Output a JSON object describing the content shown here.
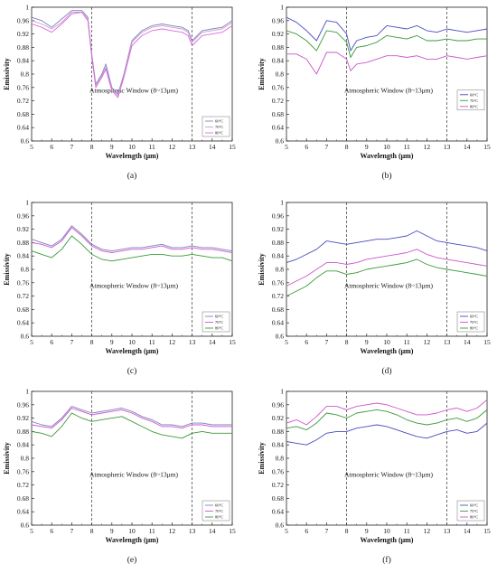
{
  "figure": {
    "panels": [
      {
        "caption": "(a)",
        "window_label": "Atmospheric Window (8~13μm)",
        "chart_data": {
          "type": "line",
          "xlabel": "Wavelength (μm)",
          "ylabel": "Emissivity",
          "xlim": [
            5,
            15
          ],
          "ylim": [
            0.6,
            1.0
          ],
          "x_ticks": [
            5,
            6,
            7,
            8,
            9,
            10,
            11,
            12,
            13,
            14,
            15
          ],
          "y_ticks": [
            0.6,
            0.64,
            0.68,
            0.72,
            0.76,
            0.8,
            0.84,
            0.88,
            0.92,
            0.96,
            1
          ],
          "vlines": [
            8,
            13
          ],
          "grid": false,
          "legend_position": "bottom-right",
          "x": [
            5,
            5.5,
            6,
            6.5,
            7,
            7.5,
            7.8,
            8,
            8.2,
            8.5,
            8.7,
            9,
            9.3,
            9.6,
            10,
            10.5,
            11,
            11.5,
            12,
            12.5,
            12.8,
            13,
            13.5,
            14,
            14.5,
            15
          ],
          "series": [
            {
              "name": "60°C",
              "color": "#7f7fbf",
              "values": [
                0.97,
                0.96,
                0.94,
                0.965,
                0.99,
                0.99,
                0.97,
                0.86,
                0.77,
                0.8,
                0.83,
                0.76,
                0.74,
                0.8,
                0.9,
                0.93,
                0.945,
                0.95,
                0.945,
                0.94,
                0.93,
                0.9,
                0.93,
                0.935,
                0.94,
                0.96
              ]
            },
            {
              "name": "70°C",
              "color": "#c2a4c2",
              "values": [
                0.96,
                0.95,
                0.935,
                0.955,
                0.985,
                0.985,
                0.965,
                0.855,
                0.765,
                0.795,
                0.82,
                0.755,
                0.735,
                0.795,
                0.895,
                0.925,
                0.94,
                0.945,
                0.94,
                0.935,
                0.925,
                0.895,
                0.925,
                0.93,
                0.935,
                0.955
              ]
            },
            {
              "name": "80°C",
              "color": "#e066e0",
              "values": [
                0.95,
                0.94,
                0.925,
                0.95,
                0.98,
                0.985,
                0.96,
                0.85,
                0.76,
                0.79,
                0.815,
                0.75,
                0.73,
                0.79,
                0.885,
                0.915,
                0.93,
                0.935,
                0.93,
                0.925,
                0.915,
                0.885,
                0.915,
                0.92,
                0.925,
                0.945
              ]
            }
          ]
        }
      },
      {
        "caption": "(b)",
        "window_label": "Atmospheric Window (8~13μm)",
        "chart_data": {
          "type": "line",
          "xlabel": "Wavelength (μm)",
          "ylabel": "Emissivity",
          "xlim": [
            5,
            15
          ],
          "ylim": [
            0.6,
            1.0
          ],
          "x_ticks": [
            5,
            6,
            7,
            8,
            9,
            10,
            11,
            12,
            13,
            14,
            15
          ],
          "y_ticks": [
            0.6,
            0.64,
            0.68,
            0.72,
            0.76,
            0.8,
            0.84,
            0.88,
            0.92,
            0.96,
            1
          ],
          "vlines": [
            8,
            13
          ],
          "grid": false,
          "legend_position": "right",
          "x": [
            5,
            5.5,
            6,
            6.5,
            7,
            7.5,
            8,
            8.2,
            8.5,
            9,
            9.5,
            10,
            10.5,
            11,
            11.5,
            12,
            12.5,
            13,
            13.5,
            14,
            14.5,
            15
          ],
          "series": [
            {
              "name": "60°C",
              "color": "#4b4bbf",
              "values": [
                0.97,
                0.955,
                0.93,
                0.9,
                0.96,
                0.955,
                0.92,
                0.87,
                0.9,
                0.91,
                0.915,
                0.945,
                0.94,
                0.935,
                0.945,
                0.93,
                0.925,
                0.935,
                0.93,
                0.925,
                0.93,
                0.935
              ]
            },
            {
              "name": "70°C",
              "color": "#3a9a3a",
              "values": [
                0.93,
                0.92,
                0.9,
                0.87,
                0.93,
                0.925,
                0.895,
                0.85,
                0.88,
                0.885,
                0.895,
                0.915,
                0.91,
                0.905,
                0.915,
                0.9,
                0.9,
                0.905,
                0.9,
                0.9,
                0.905,
                0.905
              ]
            },
            {
              "name": "80°C",
              "color": "#cc55cc",
              "values": [
                0.86,
                0.86,
                0.845,
                0.8,
                0.865,
                0.865,
                0.845,
                0.81,
                0.83,
                0.835,
                0.845,
                0.855,
                0.855,
                0.85,
                0.855,
                0.845,
                0.845,
                0.855,
                0.85,
                0.845,
                0.85,
                0.855
              ]
            }
          ]
        }
      },
      {
        "caption": "(c)",
        "window_label": "Atmospheric Window (8~13μm)",
        "chart_data": {
          "type": "line",
          "xlabel": "Wavelength (μm)",
          "ylabel": "Emissivity",
          "xlim": [
            5,
            15
          ],
          "ylim": [
            0.6,
            1.0
          ],
          "x_ticks": [
            5,
            6,
            7,
            8,
            9,
            10,
            11,
            12,
            13,
            14,
            15
          ],
          "y_ticks": [
            0.6,
            0.64,
            0.68,
            0.72,
            0.76,
            0.8,
            0.84,
            0.88,
            0.92,
            0.96,
            1
          ],
          "vlines": [
            8,
            13
          ],
          "grid": false,
          "legend_position": "bottom-right",
          "x": [
            5,
            5.5,
            6,
            6.5,
            7,
            7.5,
            8,
            8.5,
            9,
            9.5,
            10,
            10.5,
            11,
            11.5,
            12,
            12.5,
            13,
            13.5,
            14,
            14.5,
            15
          ],
          "series": [
            {
              "name": "60°C",
              "color": "#7f7fbf",
              "values": [
                0.89,
                0.88,
                0.87,
                0.89,
                0.93,
                0.905,
                0.875,
                0.86,
                0.855,
                0.86,
                0.865,
                0.865,
                0.87,
                0.875,
                0.865,
                0.865,
                0.87,
                0.865,
                0.865,
                0.86,
                0.855
              ]
            },
            {
              "name": "70°C",
              "color": "#cc55cc",
              "values": [
                0.88,
                0.875,
                0.865,
                0.885,
                0.925,
                0.9,
                0.87,
                0.855,
                0.85,
                0.855,
                0.86,
                0.86,
                0.865,
                0.87,
                0.86,
                0.86,
                0.865,
                0.86,
                0.86,
                0.855,
                0.85
              ]
            },
            {
              "name": "80°C",
              "color": "#3a9a3a",
              "values": [
                0.855,
                0.845,
                0.835,
                0.86,
                0.9,
                0.875,
                0.845,
                0.83,
                0.825,
                0.83,
                0.835,
                0.84,
                0.845,
                0.845,
                0.84,
                0.84,
                0.845,
                0.84,
                0.835,
                0.835,
                0.825
              ]
            }
          ]
        }
      },
      {
        "caption": "(d)",
        "window_label": "Atmospheric Window (8~13μm)",
        "chart_data": {
          "type": "line",
          "xlabel": "Wavelength (μm)",
          "ylabel": "Emissivity",
          "xlim": [
            5,
            15
          ],
          "ylim": [
            0.6,
            1.0
          ],
          "x_ticks": [
            5,
            6,
            7,
            8,
            9,
            10,
            11,
            12,
            13,
            14,
            15
          ],
          "y_ticks": [
            0.6,
            0.64,
            0.68,
            0.72,
            0.76,
            0.8,
            0.84,
            0.88,
            0.92,
            0.96,
            1
          ],
          "vlines": [
            8,
            13
          ],
          "grid": false,
          "legend_position": "bottom-right",
          "x": [
            5,
            5.5,
            6,
            6.5,
            7,
            7.5,
            8,
            8.5,
            9,
            9.5,
            10,
            10.5,
            11,
            11.5,
            12,
            12.5,
            13,
            13.5,
            14,
            14.5,
            15
          ],
          "series": [
            {
              "name": "60°C",
              "color": "#4b4bbf",
              "values": [
                0.82,
                0.83,
                0.845,
                0.86,
                0.885,
                0.88,
                0.875,
                0.88,
                0.885,
                0.89,
                0.89,
                0.895,
                0.9,
                0.915,
                0.9,
                0.885,
                0.88,
                0.875,
                0.87,
                0.865,
                0.855
              ]
            },
            {
              "name": "70°C",
              "color": "#cc55cc",
              "values": [
                0.75,
                0.765,
                0.78,
                0.8,
                0.82,
                0.82,
                0.815,
                0.82,
                0.83,
                0.835,
                0.84,
                0.845,
                0.85,
                0.86,
                0.845,
                0.835,
                0.83,
                0.825,
                0.82,
                0.815,
                0.81
              ]
            },
            {
              "name": "80°C",
              "color": "#3a9a3a",
              "values": [
                0.72,
                0.735,
                0.75,
                0.775,
                0.795,
                0.795,
                0.785,
                0.79,
                0.8,
                0.805,
                0.81,
                0.815,
                0.82,
                0.83,
                0.815,
                0.805,
                0.8,
                0.795,
                0.79,
                0.785,
                0.78
              ]
            }
          ]
        }
      },
      {
        "caption": "(e)",
        "window_label": "Atmospheric Window (8~13μm)",
        "chart_data": {
          "type": "line",
          "xlabel": "Wavelength (μm)",
          "ylabel": "Emissivity",
          "xlim": [
            5,
            15
          ],
          "ylim": [
            0.6,
            1.0
          ],
          "x_ticks": [
            5,
            6,
            7,
            8,
            9,
            10,
            11,
            12,
            13,
            14,
            15
          ],
          "y_ticks": [
            0.6,
            0.64,
            0.68,
            0.72,
            0.76,
            0.8,
            0.84,
            0.88,
            0.92,
            0.96,
            1
          ],
          "vlines": [
            8,
            13
          ],
          "grid": false,
          "legend_position": "bottom-right",
          "x": [
            5,
            5.5,
            6,
            6.5,
            7,
            7.5,
            8,
            8.5,
            9,
            9.5,
            10,
            10.5,
            11,
            11.5,
            12,
            12.5,
            13,
            13.5,
            14,
            14.5,
            15
          ],
          "series": [
            {
              "name": "60°C",
              "color": "#7f7fbf",
              "values": [
                0.91,
                0.9,
                0.895,
                0.92,
                0.955,
                0.945,
                0.935,
                0.94,
                0.945,
                0.95,
                0.94,
                0.925,
                0.915,
                0.9,
                0.9,
                0.895,
                0.905,
                0.905,
                0.9,
                0.9,
                0.9
              ]
            },
            {
              "name": "70°C",
              "color": "#cc55cc",
              "values": [
                0.9,
                0.895,
                0.89,
                0.915,
                0.95,
                0.94,
                0.93,
                0.935,
                0.94,
                0.945,
                0.935,
                0.92,
                0.91,
                0.895,
                0.895,
                0.89,
                0.9,
                0.9,
                0.895,
                0.895,
                0.895
              ]
            },
            {
              "name": "80°C",
              "color": "#3a9a3a",
              "values": [
                0.88,
                0.875,
                0.865,
                0.895,
                0.935,
                0.92,
                0.91,
                0.915,
                0.92,
                0.925,
                0.91,
                0.895,
                0.88,
                0.87,
                0.865,
                0.86,
                0.875,
                0.88,
                0.875,
                0.875,
                0.875
              ]
            }
          ]
        }
      },
      {
        "caption": "(f)",
        "window_label": "Atmospheric Window (8~13μm)",
        "chart_data": {
          "type": "line",
          "xlabel": "Wavelength (μm)",
          "ylabel": "Emissivity",
          "xlim": [
            5,
            15
          ],
          "ylim": [
            0.6,
            1.0
          ],
          "x_ticks": [
            5,
            6,
            7,
            8,
            9,
            10,
            11,
            12,
            13,
            14,
            15
          ],
          "y_ticks": [
            0.6,
            0.64,
            0.68,
            0.72,
            0.76,
            0.8,
            0.84,
            0.88,
            0.92,
            0.96,
            1
          ],
          "vlines": [
            8,
            13
          ],
          "grid": false,
          "legend_position": "bottom-right",
          "x": [
            5,
            5.5,
            6,
            6.5,
            7,
            7.5,
            8,
            8.5,
            9,
            9.5,
            10,
            10.5,
            11,
            11.5,
            12,
            12.5,
            13,
            13.5,
            14,
            14.5,
            15
          ],
          "series": [
            {
              "name": "60°C",
              "color": "#4b4bbf",
              "values": [
                0.85,
                0.845,
                0.84,
                0.855,
                0.875,
                0.88,
                0.88,
                0.89,
                0.895,
                0.9,
                0.895,
                0.885,
                0.875,
                0.865,
                0.86,
                0.87,
                0.88,
                0.885,
                0.875,
                0.88,
                0.905
              ]
            },
            {
              "name": "70°C",
              "color": "#3a9a3a",
              "values": [
                0.89,
                0.895,
                0.885,
                0.905,
                0.935,
                0.93,
                0.92,
                0.935,
                0.94,
                0.945,
                0.94,
                0.93,
                0.915,
                0.905,
                0.9,
                0.905,
                0.915,
                0.92,
                0.91,
                0.92,
                0.945
              ]
            },
            {
              "name": "80°C",
              "color": "#cc55cc",
              "values": [
                0.905,
                0.915,
                0.9,
                0.925,
                0.955,
                0.955,
                0.945,
                0.955,
                0.96,
                0.965,
                0.96,
                0.95,
                0.94,
                0.93,
                0.93,
                0.935,
                0.945,
                0.95,
                0.94,
                0.95,
                0.975
              ]
            }
          ]
        }
      }
    ]
  }
}
